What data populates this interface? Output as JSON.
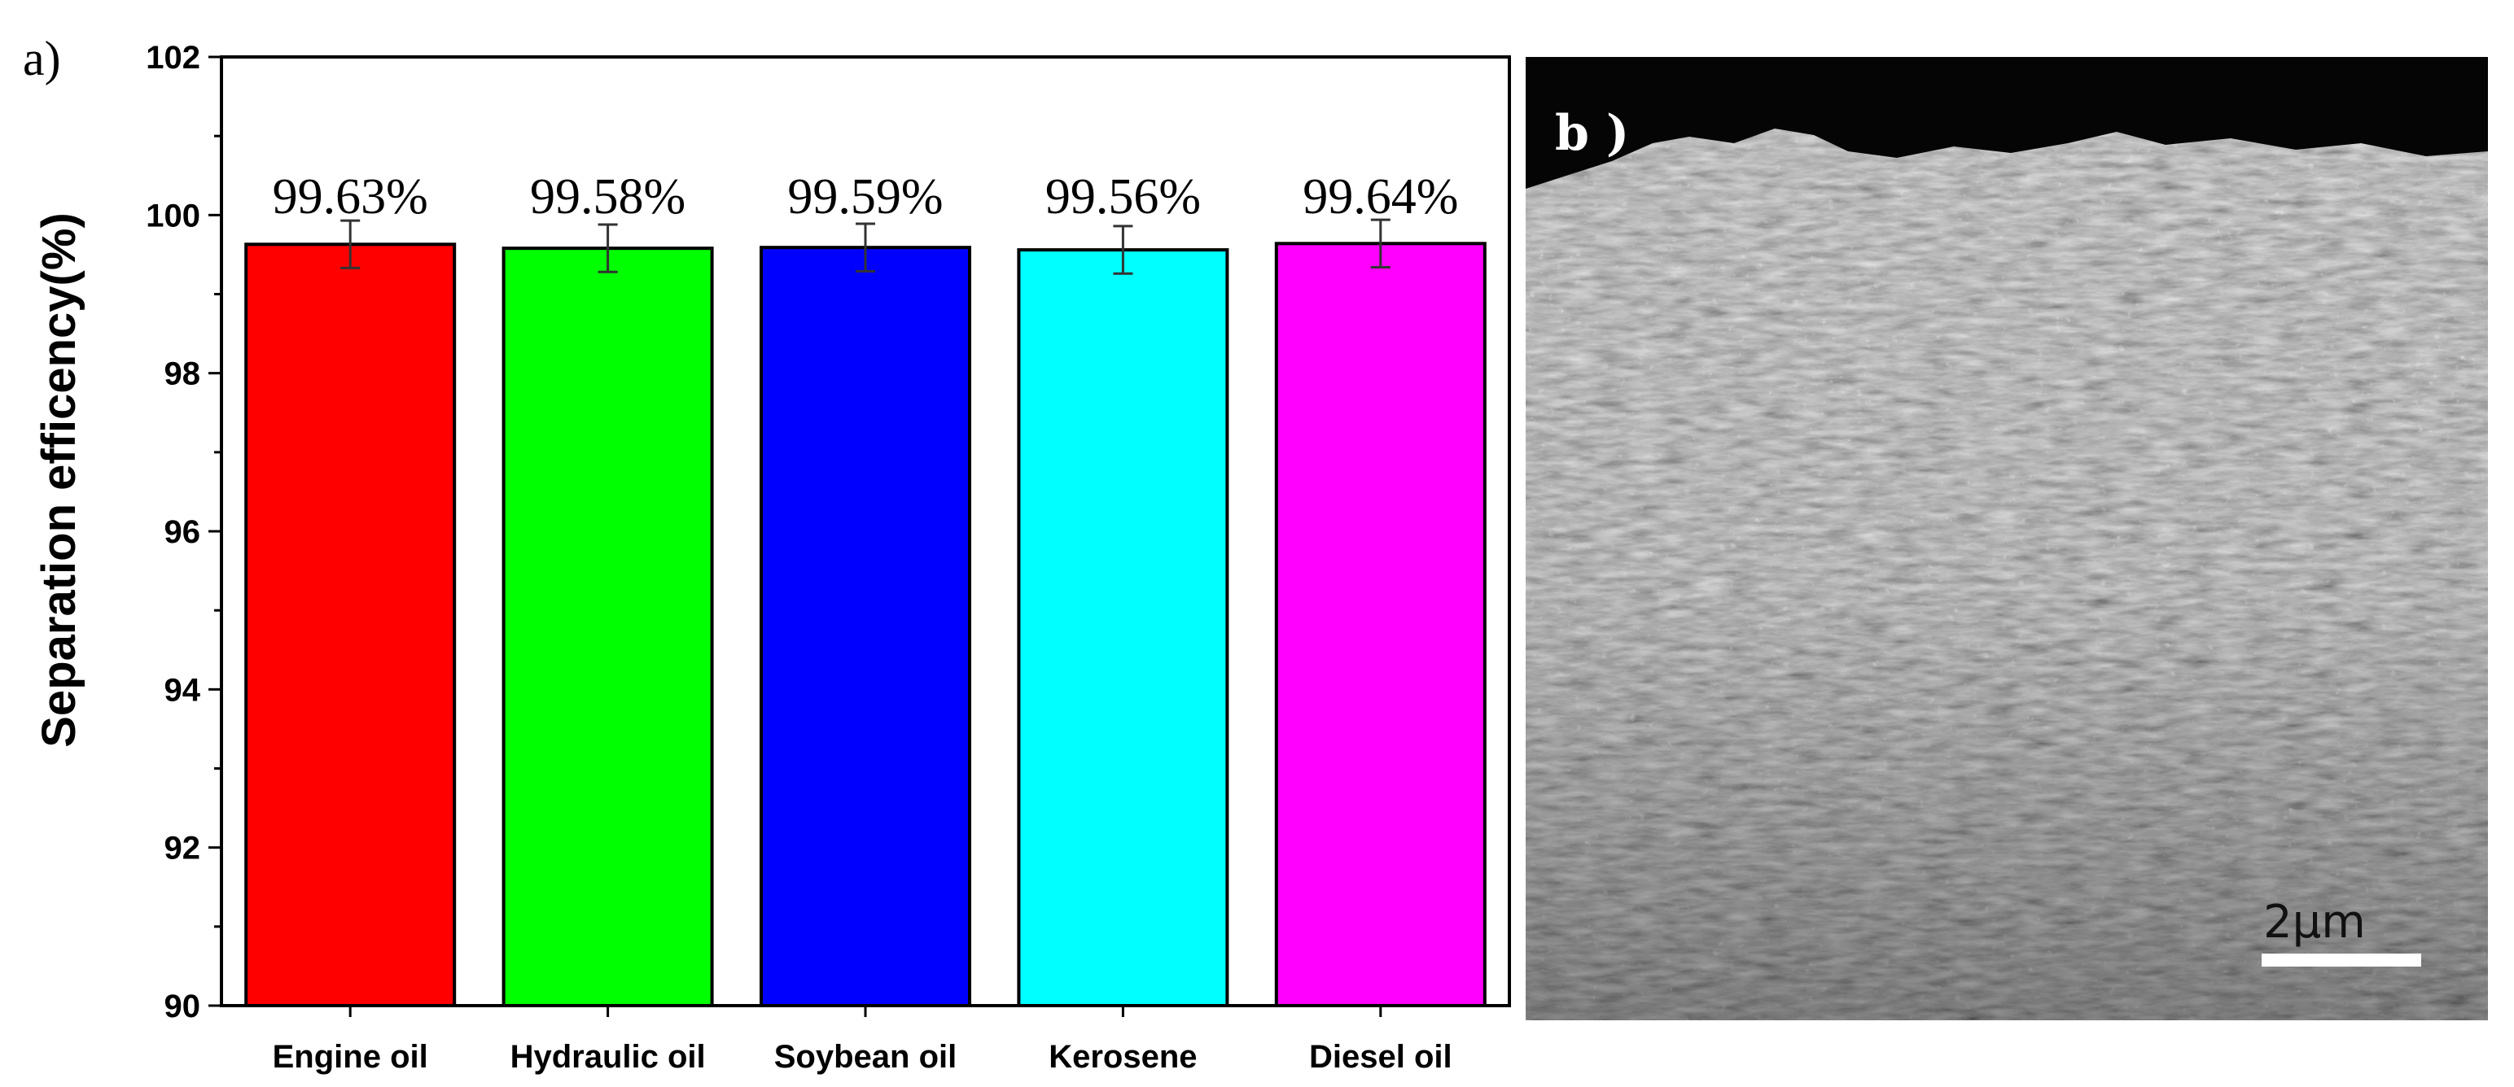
{
  "chart_data": {
    "type": "bar",
    "panel_label": "a)",
    "title": "",
    "xlabel": "",
    "ylabel": "Separation efficency(%)",
    "ylim": [
      90,
      102
    ],
    "yticks": [
      "90",
      "92",
      "94",
      "96",
      "98",
      "100",
      "102"
    ],
    "categories": [
      "Engine oil",
      "Hydraulic oil",
      "Soybean oil",
      "Kerosene",
      "Diesel oil"
    ],
    "values": [
      99.63,
      99.58,
      99.59,
      99.56,
      99.64
    ],
    "errors": [
      0.3,
      0.3,
      0.3,
      0.3,
      0.3
    ],
    "data_labels": [
      "99.63%",
      "99.58%",
      "99.59%",
      "99.56%",
      "99.64%"
    ],
    "colors": [
      "#ff0000",
      "#00ff00",
      "#0000ff",
      "#00ffff",
      "#ff00ff"
    ],
    "grid": false,
    "legend": "none"
  },
  "micrograph": {
    "panel_label": "b )",
    "scale_bar_label": "2μm"
  }
}
